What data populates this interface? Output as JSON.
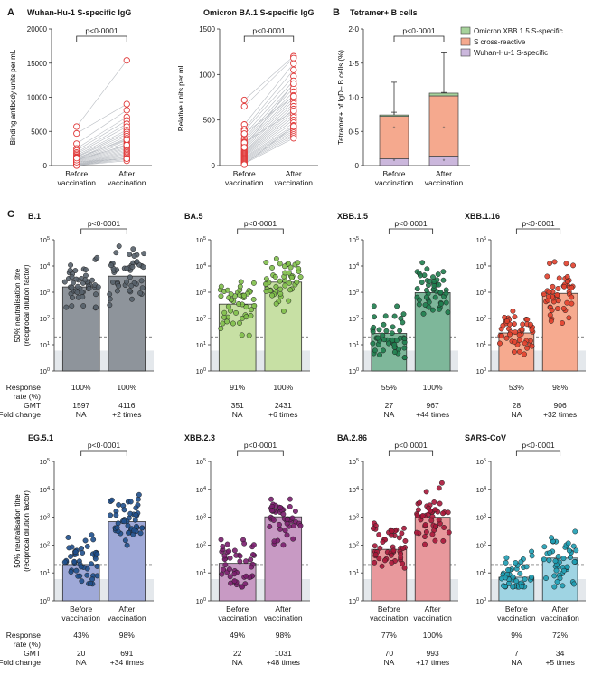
{
  "panel_letters": [
    "A",
    "B",
    "C"
  ],
  "chart_data": [
    {
      "type": "scatter",
      "id": "wuhan",
      "title": "Wuhan-Hu-1 S-specific IgG",
      "ylabel": "Binding antibody units per mL",
      "categories": [
        "Before\nvaccination",
        "After\nvaccination"
      ],
      "ylim": [
        0,
        20000
      ],
      "yticks": [
        "0",
        "5000",
        "10000",
        "15000",
        "20000"
      ],
      "significance": "p<0·0001",
      "pairs": [
        [
          5700,
          15400
        ],
        [
          4700,
          9000
        ],
        [
          3200,
          8100
        ],
        [
          2500,
          7100
        ],
        [
          2200,
          6600
        ],
        [
          1900,
          6100
        ],
        [
          1700,
          5700
        ],
        [
          1500,
          5200
        ],
        [
          1300,
          4900
        ],
        [
          1200,
          4600
        ],
        [
          1000,
          4300
        ],
        [
          900,
          4000
        ],
        [
          800,
          3700
        ],
        [
          700,
          3400
        ],
        [
          600,
          3100
        ],
        [
          500,
          2900
        ],
        [
          400,
          2700
        ],
        [
          300,
          2500
        ],
        [
          200,
          2300
        ],
        [
          150,
          2100
        ],
        [
          100,
          1900
        ],
        [
          80,
          1700
        ],
        [
          60,
          1500
        ],
        [
          40,
          1300
        ],
        [
          30,
          1100
        ],
        [
          20,
          900
        ],
        [
          10,
          700
        ],
        [
          500,
          1000
        ],
        [
          800,
          3000
        ],
        [
          1100,
          3800
        ]
      ]
    },
    {
      "type": "scatter",
      "id": "omicron",
      "title": "Omicron BA.1 S-specific IgG",
      "ylabel": "Relative units per mL",
      "categories": [
        "Before\nvaccination",
        "After\nvaccination"
      ],
      "ylim": [
        0,
        1500
      ],
      "yticks": [
        "0",
        "500",
        "1000",
        "1500"
      ],
      "significance": "p<0·0001",
      "pairs": [
        [
          720,
          1200
        ],
        [
          650,
          1180
        ],
        [
          450,
          1120
        ],
        [
          400,
          1050
        ],
        [
          380,
          980
        ],
        [
          340,
          930
        ],
        [
          300,
          890
        ],
        [
          280,
          850
        ],
        [
          260,
          810
        ],
        [
          240,
          770
        ],
        [
          220,
          740
        ],
        [
          200,
          710
        ],
        [
          180,
          680
        ],
        [
          160,
          650
        ],
        [
          150,
          620
        ],
        [
          140,
          590
        ],
        [
          130,
          560
        ],
        [
          120,
          530
        ],
        [
          110,
          500
        ],
        [
          100,
          470
        ],
        [
          90,
          440
        ],
        [
          80,
          420
        ],
        [
          70,
          400
        ],
        [
          60,
          380
        ],
        [
          50,
          360
        ],
        [
          40,
          340
        ],
        [
          30,
          320
        ],
        [
          20,
          300
        ],
        [
          10,
          430
        ],
        [
          350,
          760
        ],
        [
          250,
          600
        ],
        [
          200,
          900
        ]
      ]
    },
    {
      "type": "bar",
      "id": "tetramer",
      "title": "Tetramer+ B cells",
      "ylabel": "Tetramer+ of IgD– B cells (%)",
      "categories": [
        "Before\nvaccination",
        "After\nvaccination"
      ],
      "ylim": [
        0,
        2.0
      ],
      "yticks": [
        "0",
        "0·5",
        "1·0",
        "1·5",
        "2·0"
      ],
      "significance": "p<0·0001",
      "series": [
        {
          "name": "Wuhan-Hu-1 S-specific",
          "values": [
            0.1,
            0.14
          ],
          "color": "#cbb7dc",
          "err": [
            0.18,
            0.24
          ]
        },
        {
          "name": "S cross-reactive",
          "values": [
            0.62,
            0.88
          ],
          "color": "#f5a98e",
          "err": [
            0.78,
            1.07
          ]
        },
        {
          "name": "Omicron XBB.1.5 S-specific",
          "values": [
            0.02,
            0.04
          ],
          "color": "#a6d29b",
          "err": [
            1.22,
            1.65
          ]
        }
      ],
      "legend_order": [
        "Omicron XBB.1.5 S-specific",
        "S cross-reactive",
        "Wuhan-Hu-1 S-specific"
      ],
      "legend_position": "top-right"
    },
    {
      "type": "bar",
      "id": "B.1",
      "title": "B.1",
      "gmt": [
        1597,
        4116
      ],
      "response_rate": [
        "100%",
        "100%"
      ],
      "gmt_text": [
        "1597",
        "4116"
      ],
      "fold_change": [
        "NA",
        "+2 times"
      ],
      "significance": "p<0·0001",
      "color_before": "#8e949b",
      "color_after": "#8e949b",
      "dot_before": "#57606a",
      "dot_after": "#57606a"
    },
    {
      "type": "bar",
      "id": "BA.5",
      "title": "BA.5",
      "gmt": [
        351,
        2431
      ],
      "response_rate": [
        "91%",
        "100%"
      ],
      "gmt_text": [
        "351",
        "2431"
      ],
      "fold_change": [
        "NA",
        "+6 times"
      ],
      "significance": "p<0·0001",
      "color_before": "#c7e0a4",
      "color_after": "#c7e0a4",
      "dot_before": "#7fbf4a",
      "dot_after": "#7fbf4a"
    },
    {
      "type": "bar",
      "id": "XBB.1.5",
      "title": "XBB.1.5",
      "gmt": [
        27,
        967
      ],
      "response_rate": [
        "55%",
        "100%"
      ],
      "gmt_text": [
        "27",
        "967"
      ],
      "fold_change": [
        "NA",
        "+44 times"
      ],
      "significance": "p<0·0001",
      "color_before": "#7eb79a",
      "color_after": "#7eb79a",
      "dot_before": "#1f7d4e",
      "dot_after": "#1f7d4e"
    },
    {
      "type": "bar",
      "id": "XBB.1.16",
      "title": "XBB.1.16",
      "gmt": [
        28,
        906
      ],
      "response_rate": [
        "53%",
        "98%"
      ],
      "gmt_text": [
        "28",
        "906"
      ],
      "fold_change": [
        "NA",
        "+32 times"
      ],
      "significance": "p<0·0001",
      "color_before": "#f6aa8f",
      "color_after": "#f6aa8f",
      "dot_before": "#e2402c",
      "dot_after": "#e2402c"
    },
    {
      "type": "bar",
      "id": "EG.5.1",
      "title": "EG.5.1",
      "gmt": [
        20,
        691
      ],
      "response_rate": [
        "43%",
        "98%"
      ],
      "gmt_text": [
        "20",
        "691"
      ],
      "fold_change": [
        "NA",
        "+34 times"
      ],
      "significance": "p<0·0001",
      "color_before": "#9fa9d8",
      "color_after": "#9fa9d8",
      "dot_before": "#1f4f8c",
      "dot_after": "#1f4f8c"
    },
    {
      "type": "bar",
      "id": "XBB.2.3",
      "title": "XBB.2.3",
      "gmt": [
        22,
        1031
      ],
      "response_rate": [
        "49%",
        "98%"
      ],
      "gmt_text": [
        "22",
        "1031"
      ],
      "fold_change": [
        "NA",
        "+48 times"
      ],
      "significance": "p<0·0001",
      "color_before": "#c89ac4",
      "color_after": "#c89ac4",
      "dot_before": "#7a1e6e",
      "dot_after": "#7a1e6e"
    },
    {
      "type": "bar",
      "id": "BA.2.86",
      "title": "BA.2.86",
      "gmt": [
        70,
        993
      ],
      "response_rate": [
        "77%",
        "100%"
      ],
      "gmt_text": [
        "70",
        "993"
      ],
      "fold_change": [
        "NA",
        "+17 times"
      ],
      "significance": "p<0·0001",
      "color_before": "#e8989c",
      "color_after": "#e8989c",
      "dot_before": "#a8173a",
      "dot_after": "#a8173a"
    },
    {
      "type": "bar",
      "id": "SARS-CoV",
      "title": "SARS-CoV",
      "gmt": [
        7,
        34
      ],
      "response_rate": [
        "9%",
        "72%"
      ],
      "gmt_text": [
        "7",
        "34"
      ],
      "fold_change": [
        "NA",
        "+5 times"
      ],
      "significance": "p<0·0001",
      "color_before": "#9fd4e3",
      "color_after": "#9fd4e3",
      "dot_before": "#1f9db3",
      "dot_after": "#1f9db3"
    }
  ],
  "neutralisation_axis": {
    "ylabel_line1": "50% neutralisation titre",
    "ylabel_line2": "(reciprocal dilution factor)",
    "yticks": [
      "10",
      "10",
      "10",
      "10",
      "10",
      "10"
    ],
    "ytick_exponents": [
      "0",
      "1",
      "2",
      "3",
      "4",
      "5"
    ],
    "scale": "log",
    "ylim": [
      1,
      100000
    ],
    "threshold_dashed": 20,
    "detection_band_top": 6
  },
  "x_labels": {
    "before": "Before\nvaccination",
    "after": "After\nvaccination"
  },
  "table_labels": {
    "response_rate": "Response\nrate (%)",
    "gmt": "GMT",
    "fold_change": "Fold change"
  }
}
